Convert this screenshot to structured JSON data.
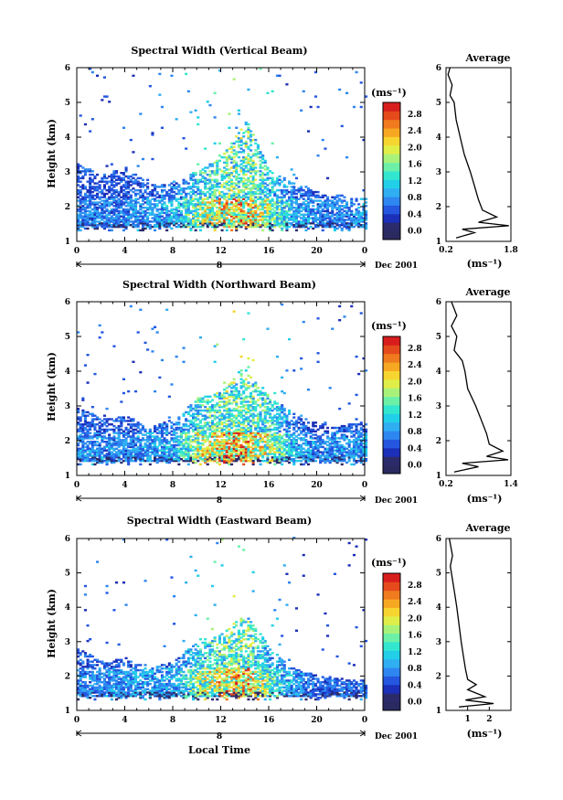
{
  "colors": {
    "scale": [
      "#2b2b6b",
      "#1c2fb8",
      "#2456e0",
      "#2e86f0",
      "#30aef2",
      "#22cfe8",
      "#33e6cf",
      "#6cf0a8",
      "#a9f27a",
      "#e0ee4a",
      "#f7d530",
      "#f7a823",
      "#f07a1e",
      "#e54a1c",
      "#d81d1d"
    ]
  },
  "chart_data": [
    {
      "type": "heatmap",
      "title": "Spectral Width (Vertical Beam)",
      "ylabel": "Height (km)",
      "xlabel": "",
      "x_ticks": [
        "0",
        "4",
        "8",
        "12",
        "16",
        "20",
        "0"
      ],
      "y_ticks": [
        "1",
        "2",
        "3",
        "4",
        "5",
        "6"
      ],
      "xlim": [
        0,
        24
      ],
      "ylim": [
        1,
        6
      ],
      "date_day": "8",
      "date_label": "Dec 2001",
      "colorbar_unit": "(ms⁻¹)",
      "colorbar_ticks": [
        "0.0",
        "0.4",
        "0.8",
        "1.2",
        "1.6",
        "2.0",
        "2.4",
        "2.8"
      ],
      "colorbar_range": [
        0,
        3.0
      ],
      "echo_top_km": [
        [
          0,
          3.2
        ],
        [
          2,
          2.9
        ],
        [
          4,
          3.1
        ],
        [
          6,
          2.6
        ],
        [
          8,
          2.7
        ],
        [
          10,
          3.0
        ],
        [
          12,
          3.4
        ],
        [
          14,
          4.5
        ],
        [
          16,
          3.0
        ],
        [
          18,
          2.7
        ],
        [
          20,
          2.4
        ],
        [
          22,
          2.3
        ],
        [
          24,
          2.2
        ]
      ],
      "max_width_ms": [
        [
          0,
          1.0
        ],
        [
          4,
          1.0
        ],
        [
          8,
          1.3
        ],
        [
          10,
          2.2
        ],
        [
          12,
          2.8
        ],
        [
          14,
          3.0
        ],
        [
          16,
          2.2
        ],
        [
          18,
          1.3
        ],
        [
          20,
          1.0
        ],
        [
          24,
          1.1
        ]
      ],
      "average_profile": {
        "title": "Average",
        "xlabel": "(ms⁻¹)",
        "x_ticks": [
          "0.2",
          "1.8"
        ],
        "xlim": [
          0.2,
          1.8
        ],
        "y_ticks": [
          "1",
          "2",
          "3",
          "4",
          "5",
          "6"
        ],
        "ylim": [
          1,
          6
        ],
        "points": [
          [
            0.45,
            1.1
          ],
          [
            0.9,
            1.25
          ],
          [
            0.6,
            1.35
          ],
          [
            1.75,
            1.45
          ],
          [
            1.0,
            1.55
          ],
          [
            1.45,
            1.7
          ],
          [
            1.1,
            1.9
          ],
          [
            1.0,
            2.2
          ],
          [
            0.9,
            2.6
          ],
          [
            0.8,
            3.0
          ],
          [
            0.65,
            3.5
          ],
          [
            0.55,
            4.0
          ],
          [
            0.45,
            4.5
          ],
          [
            0.4,
            5.0
          ],
          [
            0.3,
            5.2
          ],
          [
            0.35,
            5.5
          ],
          [
            0.25,
            5.8
          ],
          [
            0.3,
            6.0
          ]
        ]
      }
    },
    {
      "type": "heatmap",
      "title": "Spectral Width (Northward Beam)",
      "ylabel": "Height (km)",
      "xlabel": "",
      "x_ticks": [
        "0",
        "4",
        "8",
        "12",
        "16",
        "20",
        "0"
      ],
      "y_ticks": [
        "1",
        "2",
        "3",
        "4",
        "5",
        "6"
      ],
      "xlim": [
        0,
        24
      ],
      "ylim": [
        1,
        6
      ],
      "date_day": "8",
      "date_label": "Dec 2001",
      "colorbar_unit": "(ms⁻¹)",
      "colorbar_ticks": [
        "0.0",
        "0.4",
        "0.8",
        "1.2",
        "1.6",
        "2.0",
        "2.4",
        "2.8"
      ],
      "colorbar_range": [
        0,
        3.0
      ],
      "echo_top_km": [
        [
          0,
          3.0
        ],
        [
          2,
          2.6
        ],
        [
          4,
          2.7
        ],
        [
          6,
          2.4
        ],
        [
          8,
          2.6
        ],
        [
          10,
          3.2
        ],
        [
          12,
          3.4
        ],
        [
          14,
          4.2
        ],
        [
          16,
          3.2
        ],
        [
          18,
          2.8
        ],
        [
          20,
          2.5
        ],
        [
          22,
          2.4
        ],
        [
          24,
          2.6
        ]
      ],
      "max_width_ms": [
        [
          0,
          1.1
        ],
        [
          4,
          1.0
        ],
        [
          8,
          1.3
        ],
        [
          10,
          2.4
        ],
        [
          12,
          3.0
        ],
        [
          14,
          3.0
        ],
        [
          16,
          2.4
        ],
        [
          18,
          1.4
        ],
        [
          20,
          1.0
        ],
        [
          24,
          1.2
        ]
      ],
      "average_profile": {
        "title": "Average",
        "xlabel": "(ms⁻¹)",
        "x_ticks": [
          "0.2",
          "1.4"
        ],
        "xlim": [
          0.2,
          1.4
        ],
        "y_ticks": [
          "1",
          "2",
          "3",
          "4",
          "5",
          "6"
        ],
        "ylim": [
          1,
          6
        ],
        "points": [
          [
            0.35,
            1.1
          ],
          [
            0.8,
            1.25
          ],
          [
            0.5,
            1.35
          ],
          [
            1.35,
            1.45
          ],
          [
            0.95,
            1.55
          ],
          [
            1.25,
            1.7
          ],
          [
            1.0,
            1.9
          ],
          [
            0.95,
            2.2
          ],
          [
            0.85,
            2.6
          ],
          [
            0.75,
            3.0
          ],
          [
            0.6,
            3.5
          ],
          [
            0.55,
            4.0
          ],
          [
            0.5,
            4.3
          ],
          [
            0.35,
            4.6
          ],
          [
            0.4,
            5.0
          ],
          [
            0.3,
            5.3
          ],
          [
            0.4,
            5.6
          ],
          [
            0.3,
            6.0
          ]
        ]
      }
    },
    {
      "type": "heatmap",
      "title": "Spectral Width (Eastward Beam)",
      "ylabel": "Height (km)",
      "xlabel": "Local Time",
      "x_ticks": [
        "0",
        "4",
        "8",
        "12",
        "16",
        "20",
        "0"
      ],
      "y_ticks": [
        "1",
        "2",
        "3",
        "4",
        "5",
        "6"
      ],
      "xlim": [
        0,
        24
      ],
      "ylim": [
        1,
        6
      ],
      "date_day": "8",
      "date_label": "Dec 2001",
      "colorbar_unit": "(ms⁻¹)",
      "colorbar_ticks": [
        "0.0",
        "0.4",
        "0.8",
        "1.2",
        "1.6",
        "2.0",
        "2.4",
        "2.8"
      ],
      "colorbar_range": [
        0,
        3.0
      ],
      "echo_top_km": [
        [
          0,
          2.8
        ],
        [
          2,
          2.4
        ],
        [
          4,
          2.5
        ],
        [
          6,
          2.2
        ],
        [
          8,
          2.4
        ],
        [
          10,
          3.0
        ],
        [
          12,
          3.2
        ],
        [
          14,
          3.8
        ],
        [
          16,
          2.8
        ],
        [
          18,
          2.2
        ],
        [
          20,
          2.0
        ],
        [
          22,
          1.9
        ],
        [
          24,
          1.9
        ]
      ],
      "max_width_ms": [
        [
          0,
          1.0
        ],
        [
          4,
          1.2
        ],
        [
          8,
          1.2
        ],
        [
          10,
          2.2
        ],
        [
          12,
          2.8
        ],
        [
          14,
          3.0
        ],
        [
          16,
          2.0
        ],
        [
          18,
          1.2
        ],
        [
          20,
          0.8
        ],
        [
          24,
          0.9
        ]
      ],
      "average_profile": {
        "title": "Average",
        "xlabel": "(ms⁻¹)",
        "x_ticks": [
          "1",
          "2"
        ],
        "xlim": [
          0,
          3
        ],
        "y_ticks": [
          "1",
          "2",
          "3",
          "4",
          "5",
          "6"
        ],
        "ylim": [
          1,
          6
        ],
        "points": [
          [
            0.6,
            1.1
          ],
          [
            2.2,
            1.2
          ],
          [
            0.9,
            1.3
          ],
          [
            1.8,
            1.4
          ],
          [
            1.0,
            1.6
          ],
          [
            1.4,
            1.75
          ],
          [
            1.0,
            1.9
          ],
          [
            0.9,
            2.2
          ],
          [
            0.8,
            2.6
          ],
          [
            0.7,
            3.0
          ],
          [
            0.6,
            3.5
          ],
          [
            0.5,
            4.0
          ],
          [
            0.4,
            4.4
          ],
          [
            0.3,
            4.8
          ],
          [
            0.2,
            5.2
          ],
          [
            0.3,
            5.5
          ],
          [
            0.15,
            6.0
          ]
        ]
      }
    }
  ]
}
